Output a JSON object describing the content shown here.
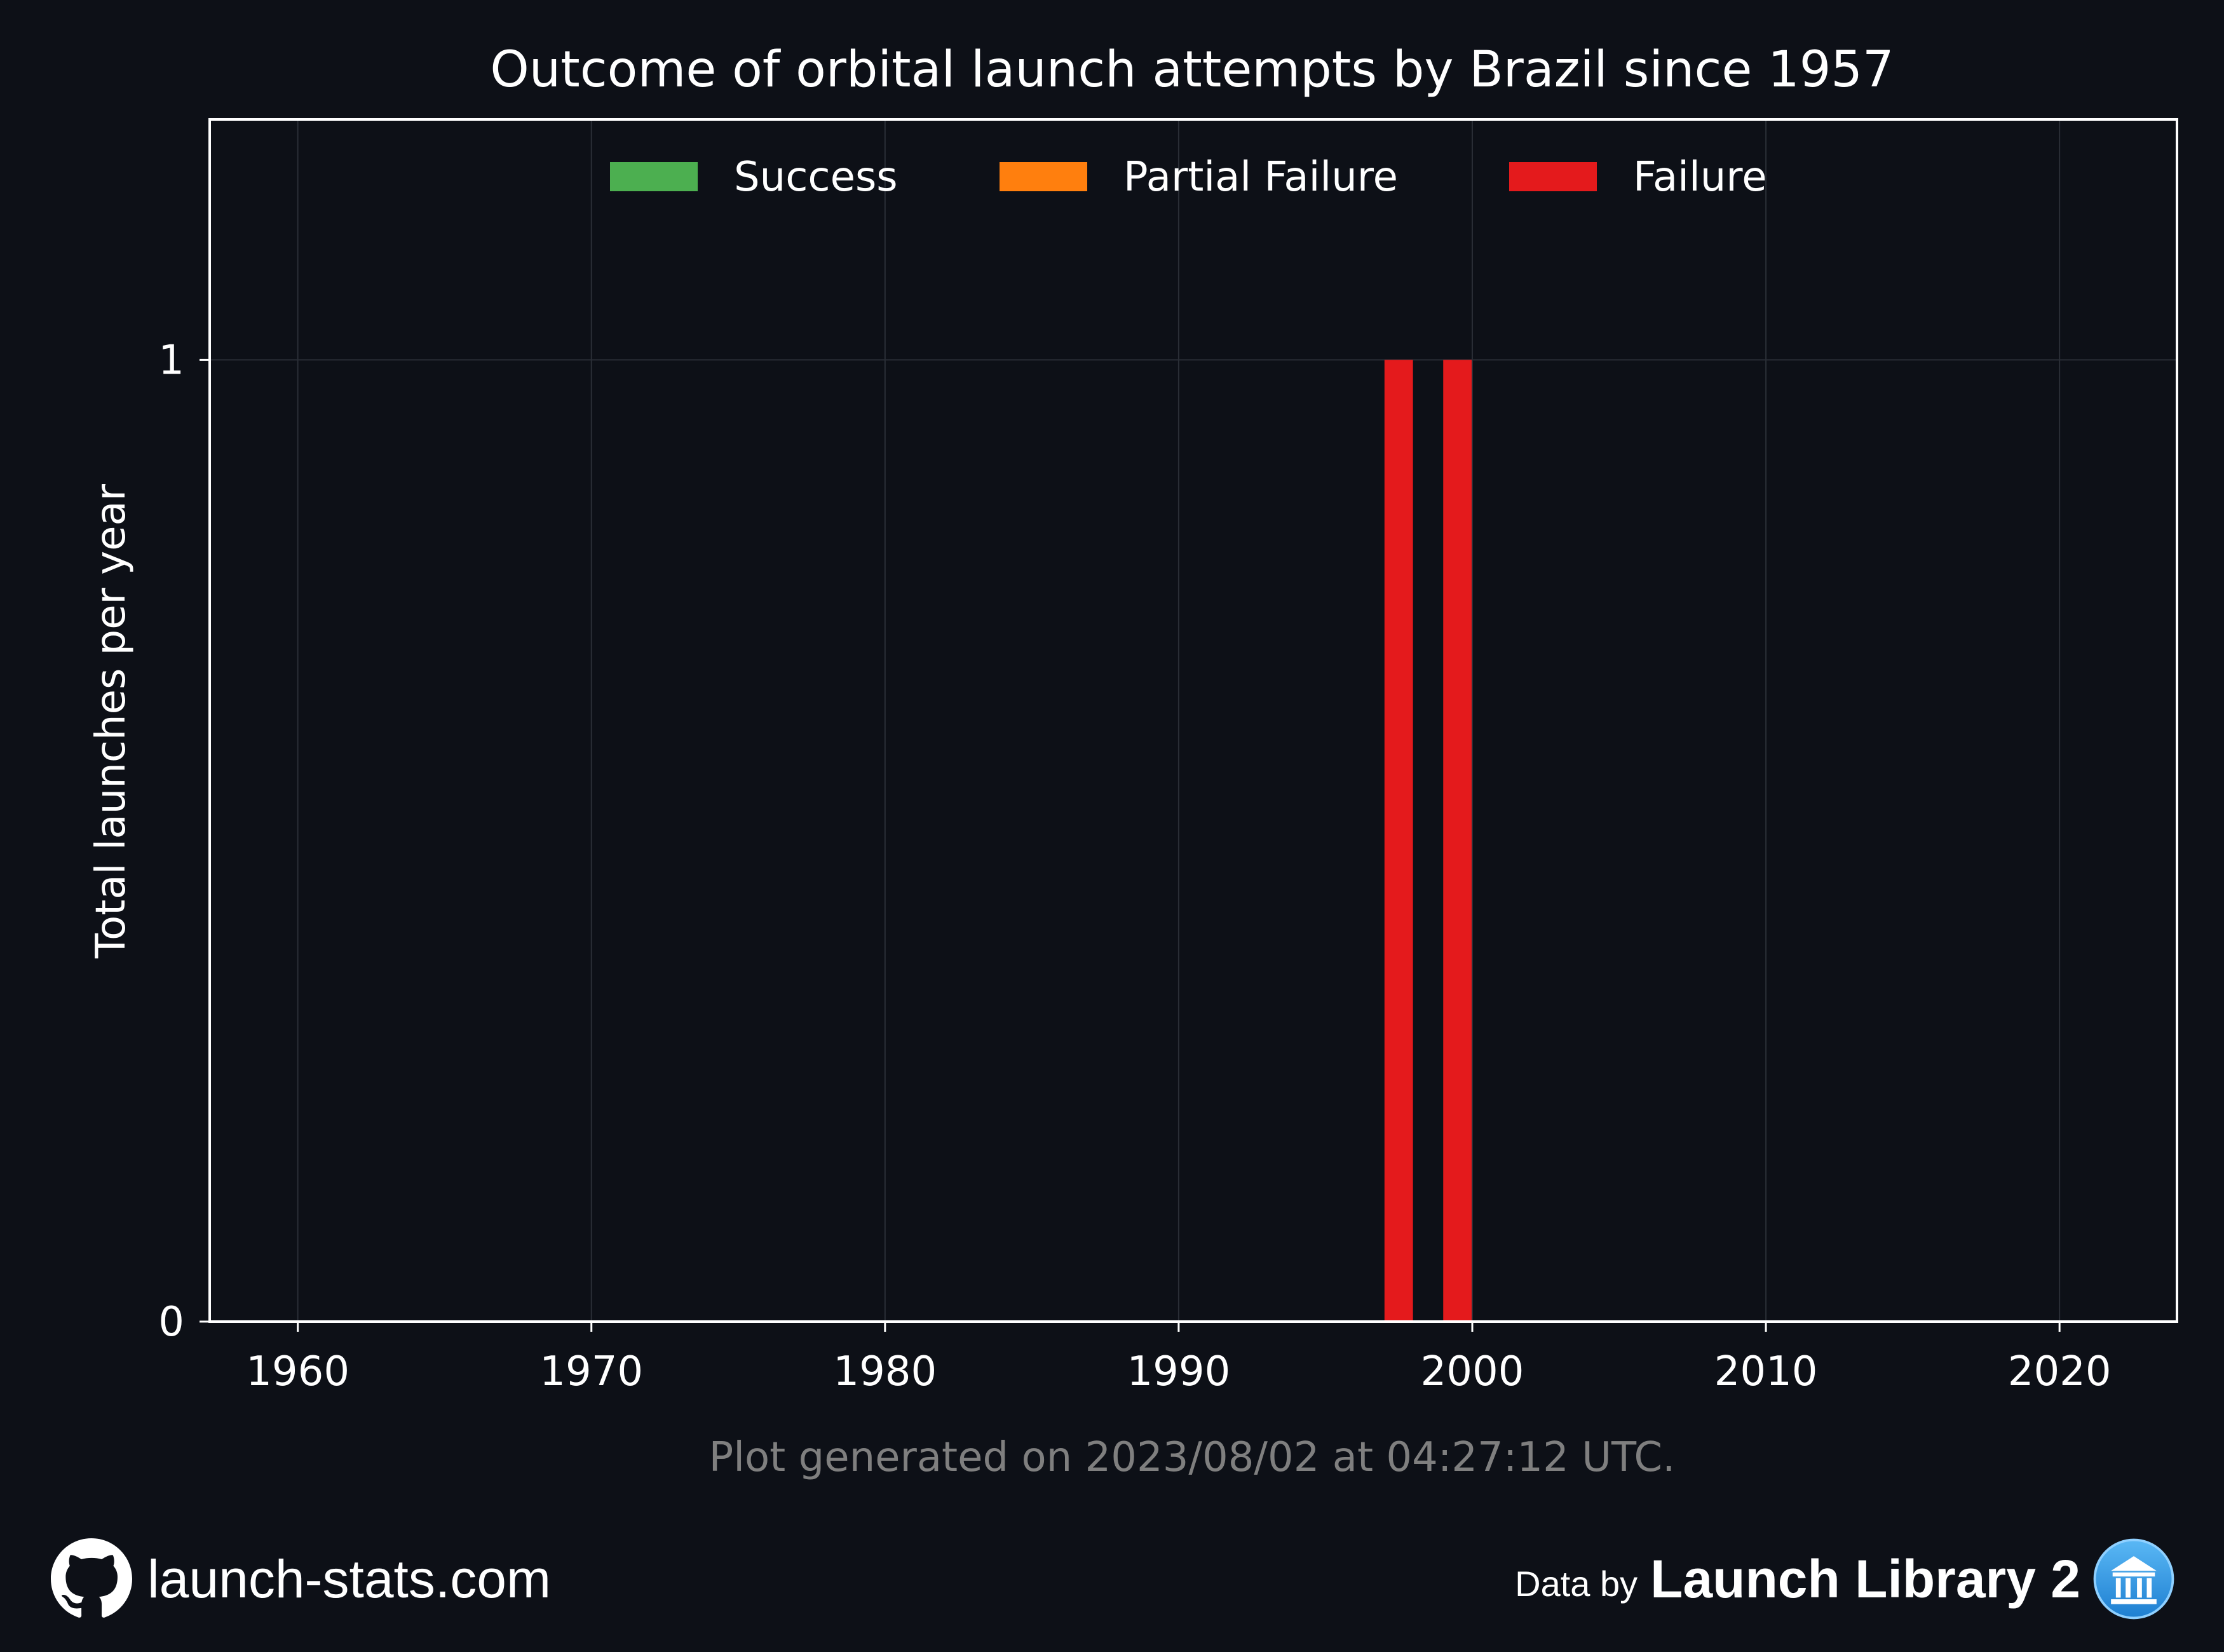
{
  "chart_data": {
    "type": "bar",
    "stacked": true,
    "title": "Outcome of orbital launch attempts by Brazil since 1957",
    "ylabel": "Total launches per year",
    "xlabel": "",
    "xlim": [
      1957,
      2024
    ],
    "ylim": [
      0,
      1.25
    ],
    "x_ticks": [
      1960,
      1970,
      1980,
      1990,
      2000,
      2010,
      2020
    ],
    "y_ticks": [
      0,
      1
    ],
    "grid": true,
    "legend_position": "top-center",
    "x": [
      1997,
      1999
    ],
    "series": [
      {
        "name": "Success",
        "color": "#4caf50",
        "values": [
          0,
          0
        ]
      },
      {
        "name": "Partial Failure",
        "color": "#ff7f0e",
        "values": [
          0,
          0
        ]
      },
      {
        "name": "Failure",
        "color": "#e41a1c",
        "values": [
          1,
          1
        ]
      }
    ]
  },
  "footnote": "Plot generated on 2023/08/02 at 04:27:12 UTC.",
  "footer": {
    "site": "launch-stats.com",
    "data_by_prefix": "Data by",
    "data_by_brand": "Launch Library 2"
  },
  "icons": {
    "left": "github-icon",
    "right": "launch-library-logo-icon"
  },
  "colors": {
    "background": "#0d1017",
    "axes": "#ffffff",
    "grid": "#2a2e36",
    "footnote": "#7f7f7f"
  }
}
